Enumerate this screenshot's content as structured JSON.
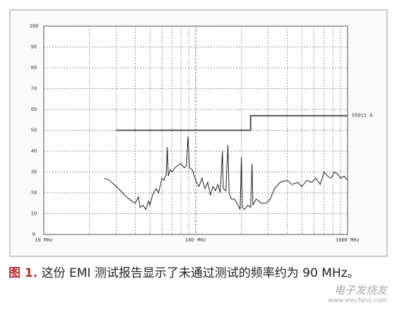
{
  "chart_data": {
    "type": "line",
    "xscale": "log",
    "xlim": [
      10,
      1000
    ],
    "xticks": [
      {
        "value": 10,
        "label": "10 MHz"
      },
      {
        "value": 100,
        "label": "100 MHz"
      },
      {
        "value": 1000,
        "label": "1000 MHz"
      }
    ],
    "ylim": [
      0,
      100
    ],
    "yticks": [
      0,
      10,
      20,
      30,
      40,
      50,
      60,
      70,
      80,
      90,
      100
    ],
    "grid": true,
    "series": [
      {
        "name": "55011 A",
        "color": "#555555",
        "x": [
          30,
          230,
          230,
          1000
        ],
        "values": [
          50,
          50,
          57,
          57
        ]
      },
      {
        "color": "#222222",
        "x": [
          25,
          27,
          29,
          31,
          33,
          35,
          38,
          40,
          42,
          43,
          45,
          47,
          49,
          50,
          52,
          55,
          57,
          60,
          62,
          64,
          65,
          66,
          68,
          70,
          73,
          76,
          80,
          84,
          87,
          89,
          91,
          95,
          100,
          105,
          110,
          115,
          120,
          125,
          130,
          135,
          140,
          145,
          150,
          152,
          158,
          163,
          166,
          172,
          180,
          190,
          196,
          200,
          203,
          210,
          220,
          230,
          235,
          238,
          250,
          270,
          290,
          310,
          330,
          360,
          400,
          430,
          470,
          500,
          540,
          580,
          620,
          660,
          700,
          740,
          780,
          820,
          860,
          900,
          950,
          1000
        ],
        "values": [
          27,
          26,
          24,
          22,
          20,
          18,
          16,
          15,
          18,
          13,
          14,
          12,
          16,
          14,
          19,
          22,
          20,
          27,
          26,
          29,
          42,
          28,
          31,
          30,
          32,
          33,
          34,
          32,
          33,
          47,
          32,
          31,
          26,
          23,
          27,
          22,
          25,
          19,
          23,
          21,
          24,
          20,
          40,
          22,
          21,
          43,
          20,
          17,
          17,
          14,
          12,
          37,
          13,
          12,
          14,
          13,
          34,
          14,
          17,
          15,
          15,
          17,
          22,
          25,
          26,
          24,
          25,
          23,
          26,
          25,
          27,
          24,
          30,
          28,
          27,
          30,
          29,
          27,
          28,
          26
        ]
      }
    ]
  },
  "caption": {
    "label": "图 1.",
    "text": "这份 EMI 测试报告显示了未通过测试的频率约为 90 MHz。"
  },
  "watermark": {
    "brand": "电子发烧友",
    "url": "www.elecfans.com"
  }
}
